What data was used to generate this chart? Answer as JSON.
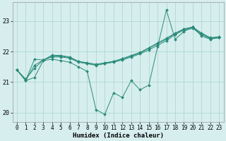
{
  "xlabel": "Humidex (Indice chaleur)",
  "x": [
    0,
    1,
    2,
    3,
    4,
    5,
    6,
    7,
    8,
    9,
    10,
    11,
    12,
    13,
    14,
    15,
    16,
    17,
    18,
    19,
    20,
    21,
    22,
    23
  ],
  "line_main": [
    21.4,
    21.05,
    21.15,
    21.7,
    21.75,
    21.7,
    21.65,
    21.5,
    21.35,
    20.1,
    19.95,
    20.65,
    20.5,
    21.05,
    20.75,
    20.9,
    22.15,
    23.35,
    22.4,
    22.65,
    22.8,
    22.5,
    22.4,
    22.45
  ],
  "line_trend1": [
    21.4,
    21.05,
    21.75,
    21.72,
    21.82,
    21.82,
    21.78,
    21.65,
    21.6,
    21.55,
    21.6,
    21.65,
    21.72,
    21.82,
    21.92,
    22.05,
    22.2,
    22.35,
    22.55,
    22.7,
    22.75,
    22.55,
    22.42,
    22.45
  ],
  "line_trend2": [
    21.4,
    21.05,
    21.55,
    21.72,
    21.85,
    21.85,
    21.8,
    21.67,
    21.62,
    21.57,
    21.62,
    21.67,
    21.75,
    21.85,
    21.95,
    22.1,
    22.25,
    22.4,
    22.58,
    22.72,
    22.78,
    22.58,
    22.43,
    22.47
  ],
  "line_trend3": [
    21.4,
    21.1,
    21.45,
    21.72,
    21.88,
    21.87,
    21.82,
    21.68,
    21.63,
    21.58,
    21.63,
    21.68,
    21.77,
    21.87,
    21.97,
    22.12,
    22.28,
    22.43,
    22.6,
    22.74,
    22.8,
    22.6,
    22.45,
    22.48
  ],
  "line_color": "#2a8b7a",
  "bg_color": "#d6eeed",
  "grid_color": "#a8d4d0",
  "xlim": [
    -0.5,
    23.5
  ],
  "ylim": [
    19.7,
    23.6
  ],
  "yticks": [
    20,
    21,
    22,
    23
  ],
  "xticks": [
    0,
    1,
    2,
    3,
    4,
    5,
    6,
    7,
    8,
    9,
    10,
    11,
    12,
    13,
    14,
    15,
    16,
    17,
    18,
    19,
    20,
    21,
    22,
    23
  ],
  "tick_fontsize": 5.5,
  "label_fontsize": 6.5,
  "lw": 0.7,
  "marker_size": 2.0
}
